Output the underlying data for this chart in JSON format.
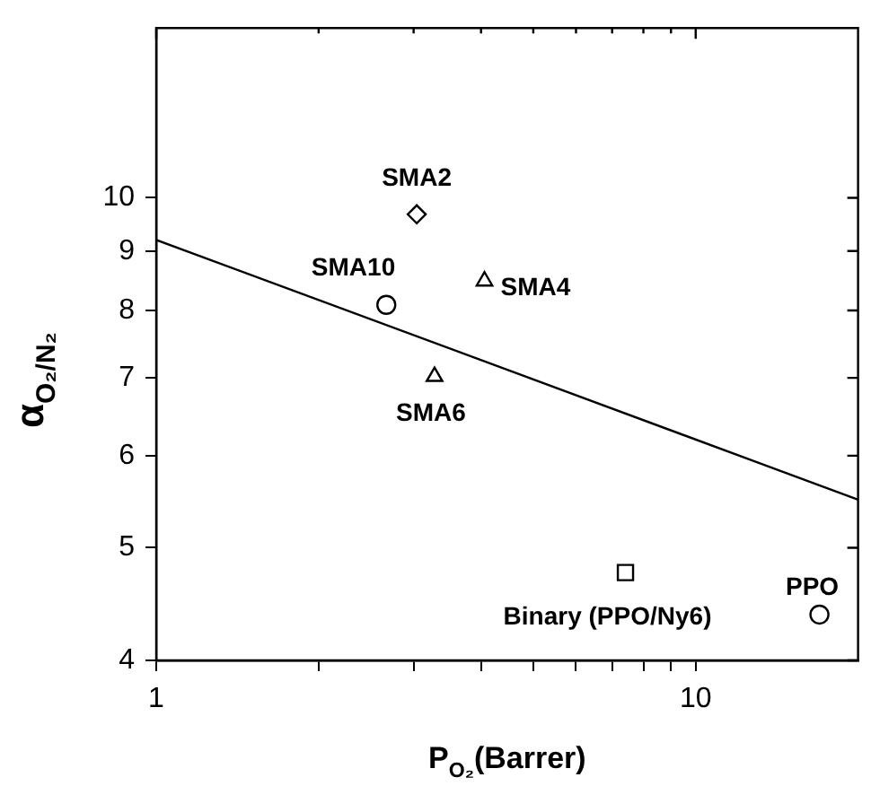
{
  "chart_data": {
    "type": "scatter",
    "xlabel": "P$_{O₂}$(Barrer)",
    "ylabel": "α$_{O₂/N₂}$",
    "log": "xy",
    "grid": false,
    "xlim": [
      1,
      20
    ],
    "ylim": [
      4,
      14
    ],
    "xticks": [
      1,
      {
        "value": 2,
        "label": null
      },
      {
        "value": 3,
        "label": null
      },
      {
        "value": 4,
        "label": null
      },
      {
        "value": 5,
        "label": null
      },
      {
        "value": 6,
        "label": null
      },
      {
        "value": 7,
        "label": null
      },
      {
        "value": 8,
        "label": null
      },
      {
        "value": 9,
        "label": null
      },
      10
    ],
    "yticks": [
      4,
      5,
      6,
      7,
      8,
      9,
      10
    ],
    "series": [
      {
        "name": "SMA2",
        "color": "#000000",
        "marker": "diamond",
        "x": [
          3.04
        ],
        "values": [
          9.68
        ]
      },
      {
        "name": "SMA10",
        "color": "#000000",
        "marker": "circle",
        "x": [
          2.67
        ],
        "values": [
          8.09
        ]
      },
      {
        "name": "SMA4",
        "color": "#000000",
        "marker": "triangle",
        "x": [
          4.06
        ],
        "values": [
          8.48
        ]
      },
      {
        "name": "SMA6",
        "color": "#000000",
        "marker": "triangle",
        "x": [
          3.28
        ],
        "values": [
          7.02
        ]
      },
      {
        "name": "Binary (PPO/Ny6)",
        "color": "#000000",
        "marker": "square",
        "x": [
          7.41
        ],
        "values": [
          4.76
        ]
      },
      {
        "name": "PPO",
        "color": "#000000",
        "marker": "circle",
        "x": [
          16.96
        ],
        "values": [
          4.38
        ]
      },
      {
        "type": "line",
        "color": "#000000",
        "marker": "none",
        "x": [
          1,
          20
        ],
        "values": [
          9.2,
          5.5
        ]
      }
    ]
  }
}
